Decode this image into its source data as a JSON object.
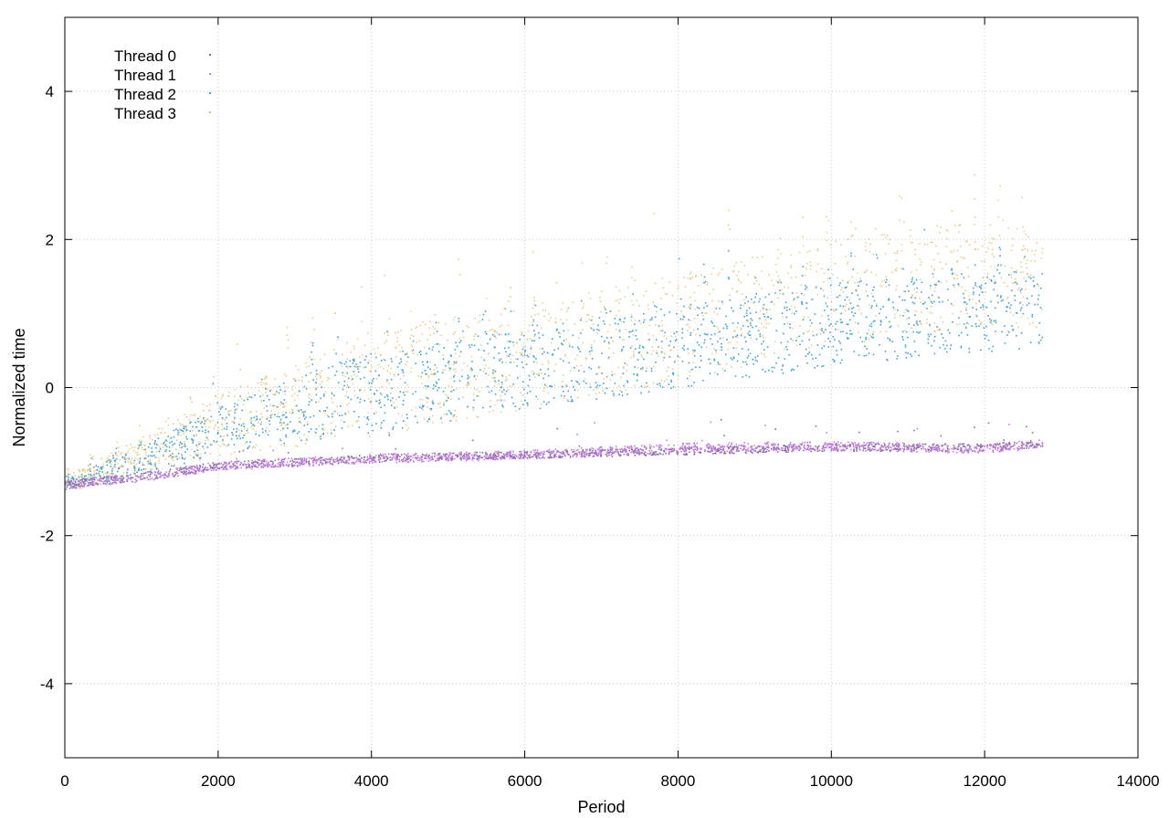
{
  "chart_data": {
    "type": "scatter",
    "title": "",
    "xlabel": "Period",
    "ylabel": "Normalized time",
    "xlim": [
      0,
      14000
    ],
    "ylim": [
      -5,
      5
    ],
    "x_ticks": [
      0,
      2000,
      4000,
      6000,
      8000,
      10000,
      12000,
      14000
    ],
    "y_ticks": [
      -4,
      -2,
      0,
      2,
      4
    ],
    "grid": true,
    "legend_position": "top-left",
    "x_range_of_data": [
      0,
      12750
    ],
    "series": [
      {
        "name": "Thread 0",
        "color": "#8b6aa8",
        "trend_x": [
          0,
          1000,
          2000,
          4000,
          6000,
          8000,
          10000,
          12000,
          12750
        ],
        "trend_y": [
          -1.3,
          -1.2,
          -1.05,
          -0.95,
          -0.9,
          -0.85,
          -0.8,
          -0.8,
          -0.75
        ],
        "spread": 0.05
      },
      {
        "name": "Thread 1",
        "color": "#c57ae6",
        "trend_x": [
          0,
          1000,
          2000,
          4000,
          6000,
          8000,
          10000,
          12000,
          12750
        ],
        "trend_y": [
          -1.3,
          -1.2,
          -1.05,
          -0.95,
          -0.9,
          -0.8,
          -0.78,
          -0.82,
          -0.75
        ],
        "spread": 0.06
      },
      {
        "name": "Thread 2",
        "color": "#3aa5d8",
        "trend_x": [
          0,
          1000,
          2000,
          4000,
          6000,
          8000,
          10000,
          12000,
          12750
        ],
        "trend_y": [
          -1.3,
          -1.0,
          -0.6,
          -0.1,
          0.2,
          0.5,
          0.8,
          1.0,
          1.0
        ],
        "spread": 0.7
      },
      {
        "name": "Thread 3",
        "color": "#e3b85a",
        "trend_x": [
          0,
          1000,
          2000,
          4000,
          6000,
          8000,
          10000,
          12000,
          12750
        ],
        "trend_y": [
          -1.3,
          -0.95,
          -0.55,
          0.0,
          0.35,
          0.75,
          1.2,
          1.5,
          1.3
        ],
        "spread": 0.9
      }
    ]
  }
}
